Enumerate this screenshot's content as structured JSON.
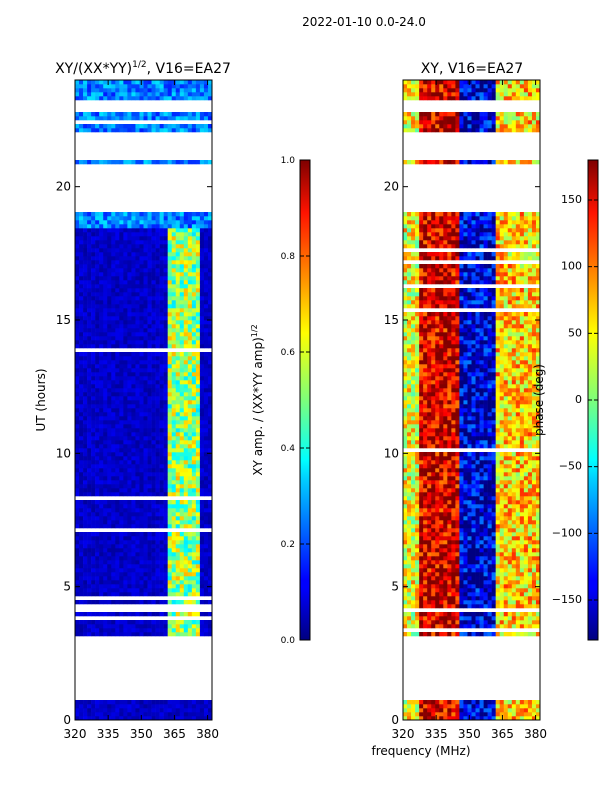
{
  "figure": {
    "suptitle": "2022-01-10 0.0-24.0",
    "shared_xlabel": "frequency (MHz)"
  },
  "chart_data": [
    {
      "type": "heatmap",
      "title": "XY/(XX*YY)",
      "title_superscript": "1/2",
      "title_suffix": ", V16=EA27",
      "xlabel": "",
      "ylabel": "UT (hours)",
      "xlim": [
        320,
        382
      ],
      "ylim": [
        0,
        24
      ],
      "xticks": [
        320,
        335,
        350,
        365,
        380
      ],
      "yticks": [
        0,
        5,
        10,
        15,
        20
      ],
      "colorbar": {
        "label": "XY amp. / (XX*YY amp)",
        "label_superscript": "1/2",
        "range": [
          0.0,
          1.0
        ],
        "ticks": [
          "0.0",
          "0.2",
          "0.4",
          "0.6",
          "0.8",
          "1.0"
        ],
        "colormap": "jet"
      },
      "data_gaps_hours": [
        [
          0.75,
          3.1
        ],
        [
          21.0,
          22.1
        ],
        [
          22.8,
          23.3
        ],
        [
          19.1,
          20.85
        ]
      ],
      "notes": "Low amplitude (~0.05) across band; elevated amplitude (~0.4-0.7) near 363-375 MHz between 3 and 18 h"
    },
    {
      "type": "heatmap",
      "title": "XY, V16=EA27",
      "xlabel": "",
      "ylabel": "",
      "xlim": [
        320,
        382
      ],
      "ylim": [
        0,
        24
      ],
      "xticks": [
        320,
        335,
        350,
        365,
        380
      ],
      "yticks": [
        0,
        5,
        10,
        15,
        20
      ],
      "colorbar": {
        "label": "phase (deg)",
        "range": [
          -180,
          180
        ],
        "ticks": [
          "150",
          "100",
          "50",
          "0",
          "−50",
          "−100",
          "−150"
        ],
        "colormap": "jet"
      },
      "data_gaps_hours": [
        [
          0.75,
          3.1
        ],
        [
          21.0,
          22.1
        ],
        [
          22.8,
          23.3
        ],
        [
          19.1,
          20.85
        ]
      ],
      "notes": "Phase varies widely, near +150 deg around 325-345 MHz and near -150 deg around 350-362 MHz"
    }
  ]
}
